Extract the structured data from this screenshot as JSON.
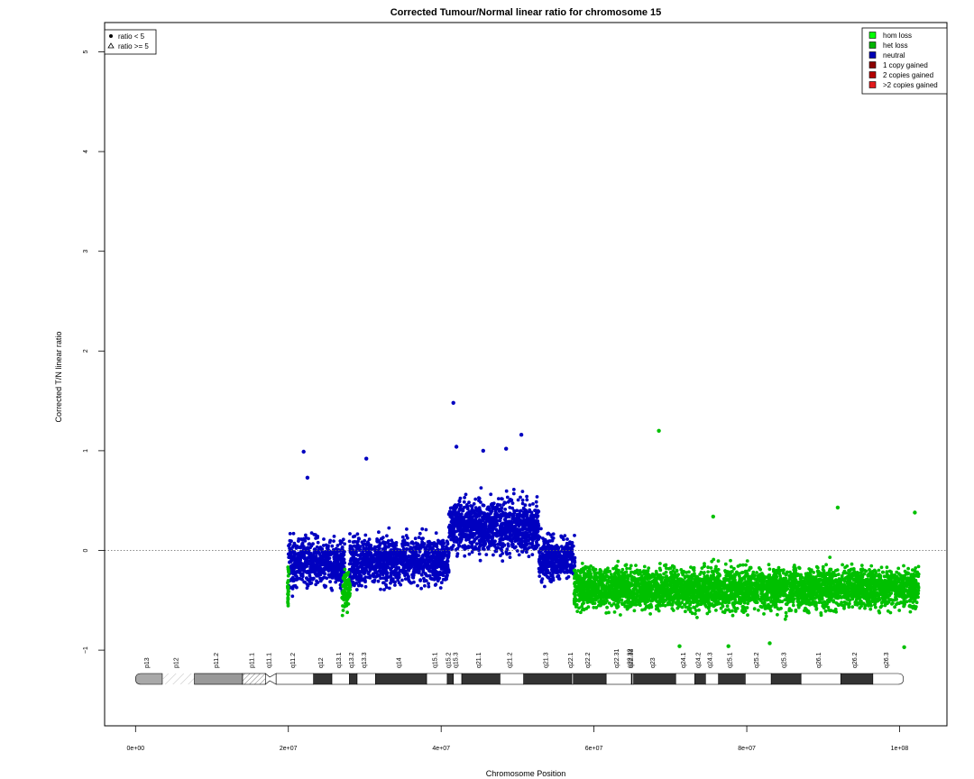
{
  "chart_data": {
    "type": "scatter",
    "title": "Corrected Tumour/Normal linear ratio for chromosome  15",
    "xlabel": "Chromosome Position",
    "ylabel": "Corrected T/N linear ratio",
    "xlim": [
      0,
      102500000
    ],
    "ylim": [
      -1.75,
      5.25
    ],
    "x_ticks": [
      {
        "value": 0,
        "label": "0e+00"
      },
      {
        "value": 20000000,
        "label": "2e+07"
      },
      {
        "value": 40000000,
        "label": "4e+07"
      },
      {
        "value": 60000000,
        "label": "6e+07"
      },
      {
        "value": 80000000,
        "label": "8e+07"
      },
      {
        "value": 100000000,
        "label": "1e+08"
      }
    ],
    "y_ticks": [
      {
        "value": -1,
        "label": "−1"
      },
      {
        "value": 0,
        "label": "0"
      },
      {
        "value": 1,
        "label": "1"
      },
      {
        "value": 2,
        "label": "2"
      },
      {
        "value": 3,
        "label": "3"
      },
      {
        "value": 4,
        "label": "4"
      },
      {
        "value": 5,
        "label": "5"
      }
    ],
    "reference_line": 0,
    "marker_legend": {
      "position": "top-left",
      "entries": [
        {
          "label": "ratio < 5",
          "marker": "dot"
        },
        {
          "label": "ratio >= 5",
          "marker": "triangle"
        }
      ]
    },
    "legend": {
      "position": "top-right",
      "entries": [
        {
          "label": "hom loss",
          "color": "#00ff00"
        },
        {
          "label": "het loss",
          "color": "#00b400"
        },
        {
          "label": "neutral",
          "color": "#0000b4"
        },
        {
          "label": "1 copy gained",
          "color": "#8b0000"
        },
        {
          "label": "2 copies gained",
          "color": "#b40000"
        },
        {
          "label": ">2 copies gained",
          "color": "#e31a1c"
        }
      ]
    },
    "series": [
      {
        "name": "neutral",
        "color": "#0000c0",
        "segments": [
          {
            "start": 20000000,
            "end": 20700000,
            "center": -0.15,
            "spread": 0.3
          },
          {
            "start": 20700000,
            "end": 27400000,
            "center": -0.12,
            "spread": 0.24
          },
          {
            "start": 28000000,
            "end": 30000000,
            "center": -0.12,
            "spread": 0.25
          },
          {
            "start": 30000000,
            "end": 41000000,
            "center": -0.1,
            "spread": 0.24
          },
          {
            "start": 41000000,
            "end": 52800000,
            "center": 0.24,
            "spread": 0.28
          },
          {
            "start": 52800000,
            "end": 57500000,
            "center": -0.08,
            "spread": 0.22
          }
        ],
        "outliers": [
          {
            "x": 22000000,
            "y": 0.99
          },
          {
            "x": 22500000,
            "y": 0.73
          },
          {
            "x": 30200000,
            "y": 0.92
          },
          {
            "x": 41600000,
            "y": 1.48
          },
          {
            "x": 42000000,
            "y": 1.04
          },
          {
            "x": 50500000,
            "y": 1.16
          },
          {
            "x": 48500000,
            "y": 1.02
          },
          {
            "x": 45500000,
            "y": 1.0
          }
        ]
      },
      {
        "name": "het loss",
        "color": "#00c000",
        "segments": [
          {
            "start": 19900000,
            "end": 20050000,
            "center": -0.35,
            "spread": 0.22
          },
          {
            "start": 27000000,
            "end": 28100000,
            "center": -0.4,
            "spread": 0.22
          },
          {
            "start": 57400000,
            "end": 102500000,
            "center": -0.38,
            "spread": 0.22
          }
        ],
        "outliers": [
          {
            "x": 68500000,
            "y": 1.2
          },
          {
            "x": 91900000,
            "y": 0.43
          },
          {
            "x": 75600000,
            "y": 0.34
          },
          {
            "x": 102000000,
            "y": 0.38
          },
          {
            "x": 71200000,
            "y": -0.96
          },
          {
            "x": 77600000,
            "y": -0.96
          },
          {
            "x": 83000000,
            "y": -0.93
          },
          {
            "x": 100600000,
            "y": -0.97
          }
        ]
      }
    ],
    "ideogram": {
      "bands": [
        {
          "name": "p13",
          "start": 0,
          "end": 3500000,
          "stain": "acen_end"
        },
        {
          "name": "p12",
          "start": 3500000,
          "end": 7700000,
          "stain": "stalk"
        },
        {
          "name": "p11.2",
          "start": 7700000,
          "end": 14000000,
          "stain": "gvar"
        },
        {
          "name": "p11.1",
          "start": 14000000,
          "end": 17000000,
          "stain": "hatch"
        },
        {
          "name": "q11.1",
          "start": 17000000,
          "end": 18400000,
          "stain": "acen"
        },
        {
          "name": "q11.2",
          "start": 18400000,
          "end": 23300000,
          "stain": "gneg"
        },
        {
          "name": "q12",
          "start": 23300000,
          "end": 25700000,
          "stain": "gpos"
        },
        {
          "name": "q13.1",
          "start": 25700000,
          "end": 28000000,
          "stain": "gneg"
        },
        {
          "name": "q13.2",
          "start": 28000000,
          "end": 29000000,
          "stain": "gpos"
        },
        {
          "name": "q13.3",
          "start": 29000000,
          "end": 31400000,
          "stain": "gneg"
        },
        {
          "name": "q14",
          "start": 31400000,
          "end": 38100000,
          "stain": "gpos"
        },
        {
          "name": "q15.1",
          "start": 38100000,
          "end": 40800000,
          "stain": "gneg"
        },
        {
          "name": "q15.2",
          "start": 40800000,
          "end": 41600000,
          "stain": "gpos"
        },
        {
          "name": "q15.3",
          "start": 41600000,
          "end": 42700000,
          "stain": "gneg"
        },
        {
          "name": "q21.1",
          "start": 42700000,
          "end": 47700000,
          "stain": "gpos"
        },
        {
          "name": "q21.2",
          "start": 47700000,
          "end": 50800000,
          "stain": "gneg"
        },
        {
          "name": "q21.3",
          "start": 50800000,
          "end": 57100000,
          "stain": "gpos"
        },
        {
          "name": "q22.1",
          "start": 57100000,
          "end": 57300000,
          "stain": "gneg"
        },
        {
          "name": "q22.2",
          "start": 57300000,
          "end": 61600000,
          "stain": "gpos"
        },
        {
          "name": "q22.31",
          "start": 61600000,
          "end": 64900000,
          "stain": "gneg"
        },
        {
          "name": "q22.32",
          "start": 64900000,
          "end": 65000000,
          "stain": "gpos"
        },
        {
          "name": "q22.33",
          "start": 65000000,
          "end": 65200000,
          "stain": "gneg"
        },
        {
          "name": "q23",
          "start": 65200000,
          "end": 70700000,
          "stain": "gpos"
        },
        {
          "name": "q24.1",
          "start": 70700000,
          "end": 73200000,
          "stain": "gneg"
        },
        {
          "name": "q24.2",
          "start": 73200000,
          "end": 74600000,
          "stain": "gpos"
        },
        {
          "name": "q24.3",
          "start": 74600000,
          "end": 76300000,
          "stain": "gneg"
        },
        {
          "name": "q25.1",
          "start": 76300000,
          "end": 79800000,
          "stain": "gpos"
        },
        {
          "name": "q25.2",
          "start": 79800000,
          "end": 83200000,
          "stain": "gneg"
        },
        {
          "name": "q25.3",
          "start": 83200000,
          "end": 87100000,
          "stain": "gpos"
        },
        {
          "name": "q26.1",
          "start": 87100000,
          "end": 92300000,
          "stain": "gneg"
        },
        {
          "name": "q26.2",
          "start": 92300000,
          "end": 96500000,
          "stain": "gpos"
        },
        {
          "name": "q26.3",
          "start": 96500000,
          "end": 100500000,
          "stain": "gneg_end"
        }
      ]
    }
  }
}
